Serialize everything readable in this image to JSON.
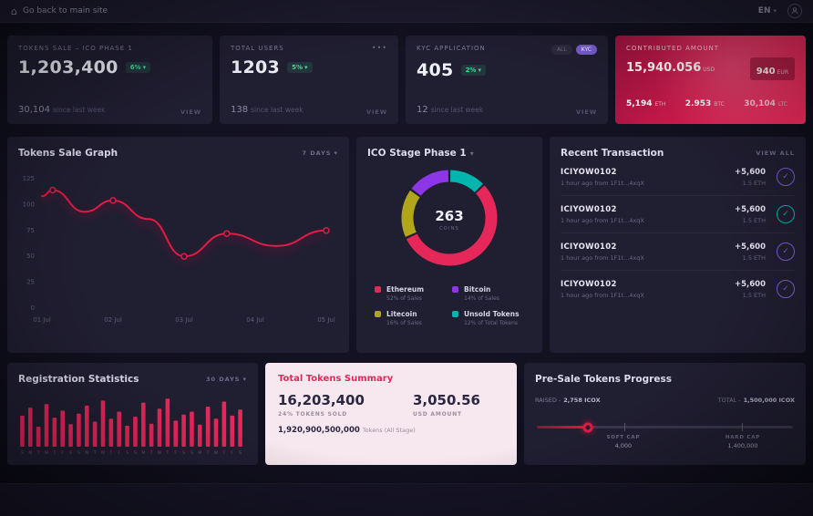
{
  "ui": {
    "caret_down": "▾",
    "dots": "•••",
    "check": "✓"
  },
  "colors": {
    "accent": "#e6275a",
    "line_red": "#e11a45",
    "green": "#3ddc97",
    "purple": "#7b5fd4",
    "teal": "#00b5ad",
    "olive": "#b1a51c"
  },
  "topbar": {
    "back_label": "Go back to main site",
    "lang": "EN"
  },
  "stats": {
    "cards": [
      {
        "title": "TOKENS SALE – ICO PHASE 1",
        "value": "1,203,400",
        "badge": "6%",
        "sub_value": "30,104",
        "sub_label": "since last week",
        "view": "VIEW"
      },
      {
        "title": "TOTAL USERS",
        "value": "1203",
        "badge": "5%",
        "sub_value": "138",
        "sub_label": "since last week",
        "view": "VIEW"
      },
      {
        "title": "KYC APPLICATION",
        "value": "405",
        "badge": "2%",
        "sub_value": "12",
        "sub_label": "since last week",
        "view": "VIEW",
        "pill_all": "ALL",
        "pill_kyc": "KYC"
      },
      {
        "title": "CONTRIBUTED AMOUNT",
        "usd_value": "15,940.056",
        "usd_label": "USD",
        "eur_value": "940",
        "eur_label": "EUR",
        "coins": [
          {
            "value": "5,194",
            "label": "ETH"
          },
          {
            "value": "2.953",
            "label": "BTC"
          },
          {
            "value": "30,104",
            "label": "LTC"
          }
        ]
      }
    ]
  },
  "sale_graph": {
    "title": "Tokens Sale Graph",
    "range": "7 DAYS"
  },
  "ico_stage": {
    "title": "ICO Stage Phase 1",
    "center_value": "263",
    "center_label": "COINS",
    "legend": [
      {
        "name": "Ethereum",
        "detail": "52% of Sales",
        "color": "#e6275a"
      },
      {
        "name": "Bitcoin",
        "detail": "14% of Sales",
        "color": "#8d36e8"
      },
      {
        "name": "Litecoin",
        "detail": "16% of Sales",
        "color": "#b1a51c"
      },
      {
        "name": "Unsold Tokens",
        "detail": "12% of Total Tokens",
        "color": "#00b5ad"
      }
    ]
  },
  "transactions": {
    "title": "Recent Transaction",
    "view_all": "VIEW ALL",
    "items": [
      {
        "code": "ICIYOW0102",
        "detail": "1 hour ago from 1F1t...4xqX",
        "amount": "+5,600",
        "eth": "1.5 ETH",
        "icon_color": "#7b5fd4"
      },
      {
        "code": "ICIYOW0102",
        "detail": "1 hour ago from 1F1t...4xqX",
        "amount": "+5,600",
        "eth": "1.5 ETH",
        "icon_color": "#00b5ad"
      },
      {
        "code": "ICIYOW0102",
        "detail": "1 hour ago from 1F1t...4xqX",
        "amount": "+5,600",
        "eth": "1.5 ETH",
        "icon_color": "#7b5fd4"
      },
      {
        "code": "ICIYOW0102",
        "detail": "1 hour ago from 1F1t...4xqX",
        "amount": "+5,600",
        "eth": "1.5 ETH",
        "icon_color": "#7b5fd4"
      }
    ]
  },
  "registration": {
    "title": "Registration Statistics",
    "range": "30 DAYS"
  },
  "summary": {
    "title": "Total Tokens Summary",
    "tokens_value": "16,203,400",
    "tokens_label": "24% TOKENS SOLD",
    "usd_value": "3,050.56",
    "usd_label": "USD AMOUNT",
    "total_value": "1,920,900,500,000",
    "total_label": "Tokens (All Stage)"
  },
  "presale": {
    "title": "Pre-Sale Tokens Progress",
    "raised_label": "RAISED -",
    "raised_value": "2,758 ICOX",
    "total_label": "TOTAL -",
    "total_value": "1,500,000 ICOX",
    "soft_cap_label": "SOFT CAP",
    "soft_cap_value": "4,000",
    "hard_cap_label": "HARD CAP",
    "hard_cap_value": "1,400,000",
    "progress_pct": 20,
    "soft_pos_pct": 34,
    "hard_pos_pct": 80
  },
  "chart_data": [
    {
      "id": "tokens_sale_line",
      "type": "line",
      "title": "Tokens Sale Graph",
      "x_ticks": [
        "01 Jul",
        "02 Jul",
        "03 Jul",
        "04 Jul",
        "05 Jul"
      ],
      "x": [
        0,
        0.15,
        0.6,
        1,
        1.5,
        2,
        2.6,
        3.3,
        4
      ],
      "values": [
        108,
        114,
        93,
        104,
        86,
        50,
        72,
        60,
        75
      ],
      "marker_indices": [
        1,
        3,
        5,
        6,
        8
      ],
      "ylim": [
        0,
        125
      ],
      "y_ticks": [
        0,
        25,
        50,
        75,
        100,
        125
      ],
      "xlabel": "",
      "ylabel": "",
      "grid": false,
      "legend_position": "none",
      "color": "#e11a45"
    },
    {
      "id": "ico_stage_donut",
      "type": "pie",
      "title": "ICO Stage Phase 1",
      "labels": [
        "Ethereum",
        "Bitcoin",
        "Litecoin",
        "Unsold Tokens"
      ],
      "values": [
        52,
        14,
        16,
        12
      ],
      "colors": [
        "#e6275a",
        "#8d36e8",
        "#b1a51c",
        "#00b5ad"
      ],
      "draw_order": [
        3,
        0,
        2,
        1
      ],
      "center_value": "263",
      "center_label": "COINS"
    },
    {
      "id": "registration_bars",
      "type": "bar",
      "title": "Registration Statistics",
      "categories": [
        "S",
        "M",
        "T",
        "W",
        "T",
        "F",
        "S",
        "S",
        "M",
        "T",
        "W",
        "T",
        "F",
        "S",
        "S",
        "M",
        "T",
        "W",
        "T",
        "F",
        "S",
        "S",
        "M",
        "T",
        "W",
        "T",
        "F",
        "S"
      ],
      "values": [
        62,
        78,
        40,
        85,
        58,
        72,
        45,
        66,
        82,
        50,
        92,
        56,
        70,
        42,
        60,
        88,
        46,
        76,
        96,
        52,
        64,
        70,
        44,
        80,
        56,
        90,
        62,
        74
      ],
      "ylim": [
        0,
        100
      ],
      "color": "#e6275a"
    }
  ]
}
